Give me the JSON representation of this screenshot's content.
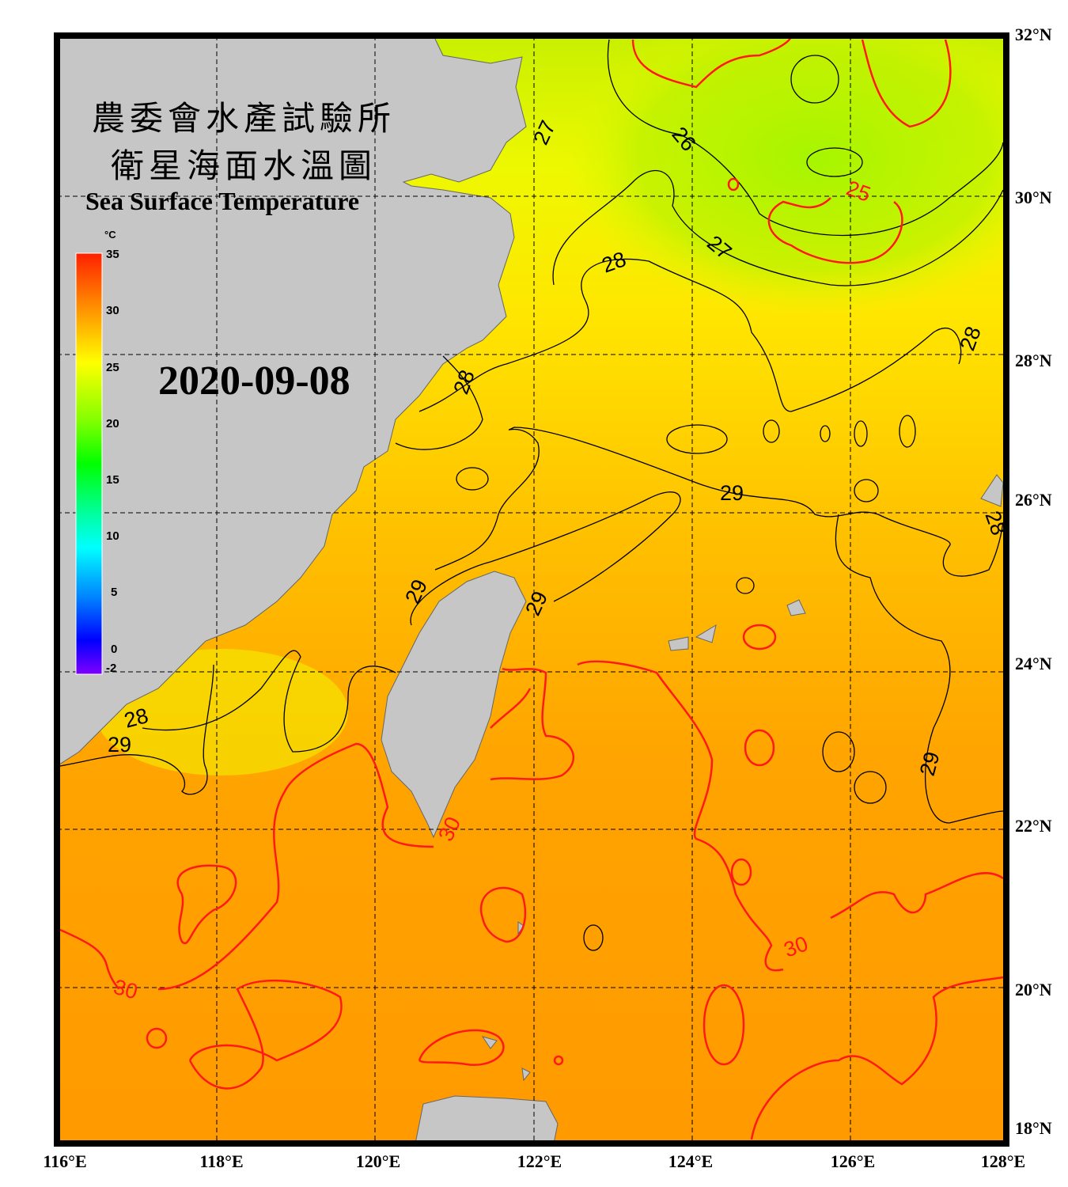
{
  "title": {
    "line1": "農委會水產試驗所",
    "line2": "衛星海面水溫圖",
    "english": "Sea Surface Temperature"
  },
  "date": "2020-09-08",
  "colorbar": {
    "unit": "°C",
    "min": -2,
    "max": 35,
    "ticks": [
      "35",
      "30",
      "25",
      "20",
      "15",
      "10",
      "5",
      "0",
      "-2"
    ],
    "colors": [
      "#ff2000",
      "#ff9000",
      "#ffff00",
      "#80ff00",
      "#00ff00",
      "#00ffa0",
      "#00ffff",
      "#0080ff",
      "#0000ff",
      "#8000ff"
    ]
  },
  "axes": {
    "lat_labels": [
      "32°N",
      "30°N",
      "28°N",
      "26°N",
      "24°N",
      "22°N",
      "20°N",
      "18°N"
    ],
    "lon_labels": [
      "116°E",
      "118°E",
      "120°E",
      "122°E",
      "124°E",
      "126°E",
      "128°E"
    ],
    "lon_range": [
      116,
      128
    ],
    "lat_range": [
      18,
      32
    ],
    "grid": "dashed"
  },
  "contour_labels": [
    "25",
    "26",
    "27",
    "27",
    "28",
    "28",
    "28",
    "28",
    "28",
    "29",
    "29",
    "29",
    "29",
    "29",
    "30",
    "30",
    "30"
  ],
  "colors": {
    "land": "#c6c6c6",
    "contour_30": "#ff1a1a",
    "contour_other": "#000000",
    "frame": "#000000"
  }
}
